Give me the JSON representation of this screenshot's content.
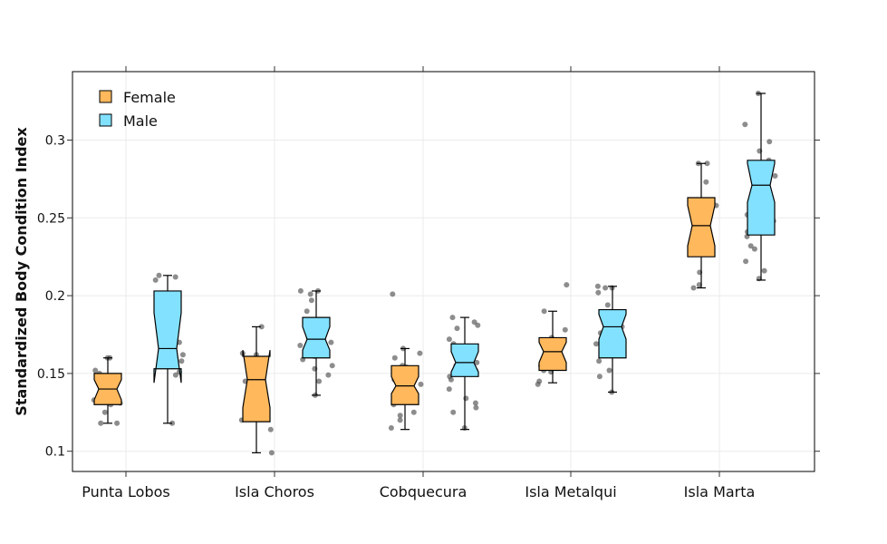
{
  "chart_data": {
    "type": "boxplot",
    "ylabel": "Standardized Body Condition Index",
    "xlabel": "",
    "ylim": [
      0.087,
      0.344
    ],
    "yticks": [
      0.1,
      0.15,
      0.2,
      0.25,
      0.3
    ],
    "ytick_labels": [
      "0.1",
      "0.15",
      "0.2",
      "0.25",
      "0.3"
    ],
    "categories": [
      "Punta Lobos",
      "Isla Choros",
      "Cobquecura",
      "Isla Metalqui",
      "Isla Marta"
    ],
    "grid": true,
    "legend_position": "top-left",
    "notched": true,
    "series": [
      {
        "name": "Female",
        "color": "#FFB85C",
        "boxes": [
          {
            "q1": 0.13,
            "median": 0.14,
            "q3": 0.15,
            "whisker_low": 0.118,
            "whisker_high": 0.16,
            "notch_low": 0.133,
            "notch_high": 0.146,
            "points": [
              0.16,
              0.16,
              0.152,
              0.15,
              0.145,
              0.141,
              0.133,
              0.131,
              0.13,
              0.125,
              0.118,
              0.118
            ]
          },
          {
            "q1": 0.119,
            "median": 0.146,
            "q3": 0.161,
            "whisker_low": 0.099,
            "whisker_high": 0.18,
            "notch_low": 0.128,
            "notch_high": 0.165,
            "points": [
              0.18,
              0.163,
              0.162,
              0.159,
              0.152,
              0.145,
              0.14,
              0.136,
              0.128,
              0.12,
              0.114,
              0.099
            ]
          },
          {
            "q1": 0.13,
            "median": 0.142,
            "q3": 0.155,
            "whisker_low": 0.114,
            "whisker_high": 0.166,
            "notch_low": 0.137,
            "notch_high": 0.148,
            "points": [
              0.201,
              0.166,
              0.163,
              0.16,
              0.155,
              0.154,
              0.15,
              0.148,
              0.146,
              0.143,
              0.14,
              0.137,
              0.134,
              0.133,
              0.13,
              0.125,
              0.123,
              0.12,
              0.115
            ]
          },
          {
            "q1": 0.152,
            "median": 0.164,
            "q3": 0.173,
            "whisker_low": 0.144,
            "whisker_high": 0.19,
            "notch_low": 0.157,
            "notch_high": 0.17,
            "points": [
              0.207,
              0.19,
              0.178,
              0.173,
              0.169,
              0.166,
              0.163,
              0.16,
              0.156,
              0.155,
              0.152,
              0.151,
              0.145,
              0.143
            ]
          },
          {
            "q1": 0.225,
            "median": 0.245,
            "q3": 0.263,
            "whisker_low": 0.205,
            "whisker_high": 0.285,
            "notch_low": 0.232,
            "notch_high": 0.258,
            "points": [
              0.285,
              0.285,
              0.273,
              0.258,
              0.248,
              0.245,
              0.241,
              0.236,
              0.229,
              0.215,
              0.207,
              0.205
            ]
          }
        ]
      },
      {
        "name": "Male",
        "color": "#82E1FF",
        "boxes": [
          {
            "q1": 0.153,
            "median": 0.166,
            "q3": 0.203,
            "whisker_low": 0.118,
            "whisker_high": 0.213,
            "notch_low": 0.144,
            "notch_high": 0.189,
            "points": [
              0.213,
              0.212,
              0.21,
              0.196,
              0.183,
              0.17,
              0.162,
              0.158,
              0.151,
              0.149,
              0.118
            ]
          },
          {
            "q1": 0.16,
            "median": 0.172,
            "q3": 0.186,
            "whisker_low": 0.136,
            "whisker_high": 0.203,
            "notch_low": 0.165,
            "notch_high": 0.18,
            "points": [
              0.203,
              0.203,
              0.201,
              0.197,
              0.19,
              0.184,
              0.179,
              0.176,
              0.173,
              0.17,
              0.168,
              0.166,
              0.164,
              0.161,
              0.159,
              0.155,
              0.153,
              0.149,
              0.145,
              0.136
            ]
          },
          {
            "q1": 0.148,
            "median": 0.157,
            "q3": 0.169,
            "whisker_low": 0.114,
            "whisker_high": 0.186,
            "notch_low": 0.151,
            "notch_high": 0.164,
            "points": [
              0.186,
              0.183,
              0.181,
              0.179,
              0.172,
              0.169,
              0.166,
              0.163,
              0.16,
              0.157,
              0.155,
              0.152,
              0.15,
              0.148,
              0.146,
              0.14,
              0.134,
              0.131,
              0.128,
              0.125,
              0.115
            ]
          },
          {
            "q1": 0.16,
            "median": 0.18,
            "q3": 0.191,
            "whisker_low": 0.138,
            "whisker_high": 0.206,
            "notch_low": 0.172,
            "notch_high": 0.188,
            "points": [
              0.206,
              0.205,
              0.205,
              0.202,
              0.194,
              0.188,
              0.184,
              0.18,
              0.176,
              0.172,
              0.169,
              0.164,
              0.158,
              0.152,
              0.148,
              0.138
            ]
          },
          {
            "q1": 0.239,
            "median": 0.271,
            "q3": 0.287,
            "whisker_low": 0.21,
            "whisker_high": 0.33,
            "notch_low": 0.26,
            "notch_high": 0.285,
            "points": [
              0.33,
              0.31,
              0.299,
              0.293,
              0.287,
              0.281,
              0.277,
              0.272,
              0.265,
              0.258,
              0.253,
              0.252,
              0.248,
              0.241,
              0.238,
              0.232,
              0.23,
              0.222,
              0.216,
              0.211
            ]
          }
        ]
      }
    ]
  }
}
